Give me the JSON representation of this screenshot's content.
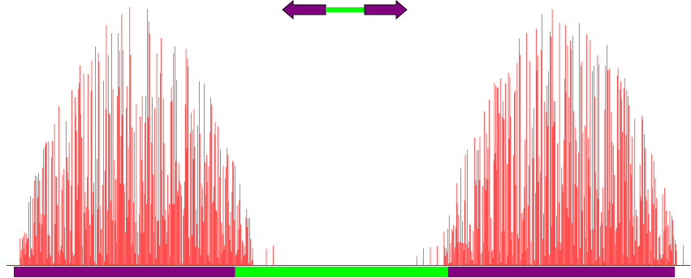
{
  "construct": {
    "segments": [
      {
        "label": "",
        "kind": "arm",
        "color": "#800080",
        "start": 0.0,
        "end": 0.335
      },
      {
        "label": "",
        "kind": "loop",
        "color": "#00ff00",
        "start": 0.335,
        "end": 0.657
      },
      {
        "label": "",
        "kind": "arm",
        "color": "#800080",
        "start": 0.657,
        "end": 1.0
      }
    ]
  },
  "legend_glyph": {
    "left_arrow_color": "#800080",
    "spacer_color": "#00ff00",
    "right_arrow_color": "#800080"
  },
  "coverage": {
    "color": "#ff0000",
    "max_value": 1.0,
    "peaks": [
      {
        "center": 0.19,
        "half_width": 0.17
      },
      {
        "center": 0.81,
        "half_width": 0.17
      }
    ],
    "sparse_positions": [
      0.36,
      0.38,
      0.39,
      0.6,
      0.61,
      0.62,
      0.63,
      0.99
    ]
  }
}
